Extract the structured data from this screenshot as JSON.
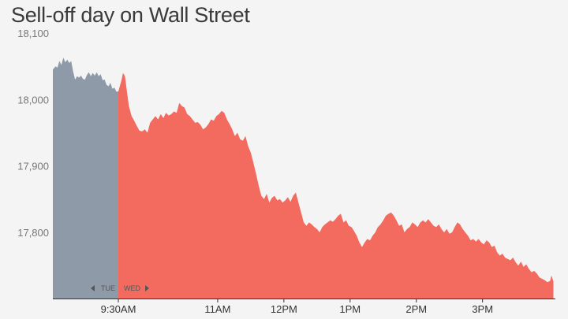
{
  "title": "Sell-off day on Wall Street",
  "colors": {
    "background": "#f4f4f4",
    "prior_day": "#8f9aa8",
    "current_day": "#f36b5f",
    "gridline": "#dcdcdc",
    "axis": "#333333"
  },
  "chart_data": {
    "type": "area",
    "title": "Sell-off day on Wall Street",
    "xlabel": "",
    "ylabel": "",
    "ylim": [
      17700,
      18100
    ],
    "yticks": [
      {
        "value": 18100,
        "label": "18,100"
      },
      {
        "value": 18000,
        "label": "18,000"
      },
      {
        "value": 17900,
        "label": "17,900"
      },
      {
        "value": 17800,
        "label": "17,800"
      }
    ],
    "xticks": [
      "9:30AM",
      "11AM",
      "12PM",
      "1PM",
      "2PM",
      "3PM"
    ],
    "xtick_hours": [
      9.5,
      11,
      12,
      13,
      14,
      15
    ],
    "xlim_hours": [
      9.5,
      16.1
    ],
    "grid": false,
    "day_markers": {
      "previous": "TUE",
      "current": "WED"
    },
    "series": [
      {
        "key": "tue",
        "points": [
          [
            0.0,
            18045
          ],
          [
            0.04,
            18050
          ],
          [
            0.07,
            18048
          ],
          [
            0.1,
            18058
          ],
          [
            0.13,
            18052
          ],
          [
            0.16,
            18063
          ],
          [
            0.19,
            18056
          ],
          [
            0.22,
            18060
          ],
          [
            0.25,
            18055
          ],
          [
            0.28,
            18058
          ],
          [
            0.31,
            18042
          ],
          [
            0.34,
            18030
          ],
          [
            0.37,
            18035
          ],
          [
            0.4,
            18033
          ],
          [
            0.43,
            18036
          ],
          [
            0.46,
            18031
          ],
          [
            0.49,
            18030
          ],
          [
            0.52,
            18037
          ],
          [
            0.55,
            18041
          ],
          [
            0.58,
            18035
          ],
          [
            0.61,
            18040
          ],
          [
            0.64,
            18036
          ],
          [
            0.67,
            18041
          ],
          [
            0.7,
            18035
          ],
          [
            0.73,
            18038
          ],
          [
            0.76,
            18029
          ],
          [
            0.79,
            18030
          ],
          [
            0.82,
            18022
          ],
          [
            0.85,
            18020
          ],
          [
            0.88,
            18025
          ],
          [
            0.91,
            18016
          ],
          [
            0.94,
            18018
          ],
          [
            0.97,
            18012
          ],
          [
            1.0,
            18012
          ]
        ]
      },
      {
        "key": "wed",
        "points": [
          [
            9.5,
            18012
          ],
          [
            9.55,
            18030
          ],
          [
            9.57,
            18040
          ],
          [
            9.6,
            18035
          ],
          [
            9.63,
            18012
          ],
          [
            9.66,
            17990
          ],
          [
            9.7,
            17975
          ],
          [
            9.74,
            17968
          ],
          [
            9.78,
            17960
          ],
          [
            9.82,
            17953
          ],
          [
            9.86,
            17952
          ],
          [
            9.9,
            17955
          ],
          [
            9.94,
            17950
          ],
          [
            9.98,
            17965
          ],
          [
            10.02,
            17970
          ],
          [
            10.06,
            17975
          ],
          [
            10.1,
            17970
          ],
          [
            10.14,
            17978
          ],
          [
            10.18,
            17972
          ],
          [
            10.22,
            17980
          ],
          [
            10.26,
            17976
          ],
          [
            10.3,
            17978
          ],
          [
            10.34,
            17982
          ],
          [
            10.38,
            17980
          ],
          [
            10.42,
            17995
          ],
          [
            10.46,
            17990
          ],
          [
            10.5,
            17988
          ],
          [
            10.54,
            17978
          ],
          [
            10.58,
            17975
          ],
          [
            10.62,
            17970
          ],
          [
            10.66,
            17965
          ],
          [
            10.7,
            17966
          ],
          [
            10.74,
            17962
          ],
          [
            10.78,
            17955
          ],
          [
            10.82,
            17958
          ],
          [
            10.86,
            17963
          ],
          [
            10.9,
            17970
          ],
          [
            10.94,
            17968
          ],
          [
            10.98,
            17975
          ],
          [
            11.02,
            17978
          ],
          [
            11.06,
            17983
          ],
          [
            11.1,
            17980
          ],
          [
            11.14,
            17970
          ],
          [
            11.18,
            17963
          ],
          [
            11.22,
            17955
          ],
          [
            11.26,
            17945
          ],
          [
            11.3,
            17950
          ],
          [
            11.34,
            17940
          ],
          [
            11.38,
            17938
          ],
          [
            11.42,
            17945
          ],
          [
            11.46,
            17930
          ],
          [
            11.5,
            17920
          ],
          [
            11.54,
            17905
          ],
          [
            11.58,
            17888
          ],
          [
            11.62,
            17870
          ],
          [
            11.66,
            17855
          ],
          [
            11.7,
            17850
          ],
          [
            11.74,
            17858
          ],
          [
            11.78,
            17845
          ],
          [
            11.82,
            17852
          ],
          [
            11.86,
            17855
          ],
          [
            11.9,
            17848
          ],
          [
            11.94,
            17850
          ],
          [
            11.98,
            17845
          ],
          [
            12.02,
            17848
          ],
          [
            12.06,
            17853
          ],
          [
            12.1,
            17846
          ],
          [
            12.14,
            17855
          ],
          [
            12.18,
            17860
          ],
          [
            12.22,
            17845
          ],
          [
            12.26,
            17830
          ],
          [
            12.3,
            17815
          ],
          [
            12.34,
            17810
          ],
          [
            12.38,
            17815
          ],
          [
            12.42,
            17812
          ],
          [
            12.46,
            17808
          ],
          [
            12.5,
            17805
          ],
          [
            12.54,
            17800
          ],
          [
            12.58,
            17808
          ],
          [
            12.62,
            17812
          ],
          [
            12.66,
            17815
          ],
          [
            12.7,
            17818
          ],
          [
            12.74,
            17816
          ],
          [
            12.78,
            17820
          ],
          [
            12.82,
            17825
          ],
          [
            12.86,
            17828
          ],
          [
            12.9,
            17815
          ],
          [
            12.94,
            17818
          ],
          [
            12.98,
            17810
          ],
          [
            13.02,
            17808
          ],
          [
            13.06,
            17802
          ],
          [
            13.1,
            17795
          ],
          [
            13.14,
            17785
          ],
          [
            13.18,
            17778
          ],
          [
            13.22,
            17785
          ],
          [
            13.26,
            17790
          ],
          [
            13.3,
            17788
          ],
          [
            13.34,
            17795
          ],
          [
            13.38,
            17800
          ],
          [
            13.42,
            17808
          ],
          [
            13.46,
            17812
          ],
          [
            13.5,
            17818
          ],
          [
            13.54,
            17825
          ],
          [
            13.58,
            17828
          ],
          [
            13.62,
            17830
          ],
          [
            13.66,
            17825
          ],
          [
            13.7,
            17818
          ],
          [
            13.74,
            17810
          ],
          [
            13.78,
            17812
          ],
          [
            13.82,
            17800
          ],
          [
            13.86,
            17805
          ],
          [
            13.9,
            17808
          ],
          [
            13.94,
            17815
          ],
          [
            13.98,
            17812
          ],
          [
            14.02,
            17808
          ],
          [
            14.06,
            17815
          ],
          [
            14.1,
            17818
          ],
          [
            14.14,
            17815
          ],
          [
            14.18,
            17820
          ],
          [
            14.22,
            17815
          ],
          [
            14.26,
            17810
          ],
          [
            14.3,
            17808
          ],
          [
            14.34,
            17812
          ],
          [
            14.38,
            17805
          ],
          [
            14.42,
            17800
          ],
          [
            14.46,
            17805
          ],
          [
            14.5,
            17798
          ],
          [
            14.54,
            17800
          ],
          [
            14.58,
            17808
          ],
          [
            14.62,
            17815
          ],
          [
            14.66,
            17812
          ],
          [
            14.7,
            17805
          ],
          [
            14.74,
            17800
          ],
          [
            14.78,
            17795
          ],
          [
            14.82,
            17788
          ],
          [
            14.86,
            17790
          ],
          [
            14.9,
            17786
          ],
          [
            14.94,
            17790
          ],
          [
            14.98,
            17785
          ],
          [
            15.02,
            17782
          ],
          [
            15.06,
            17788
          ],
          [
            15.1,
            17785
          ],
          [
            15.14,
            17778
          ],
          [
            15.18,
            17780
          ],
          [
            15.22,
            17770
          ],
          [
            15.26,
            17765
          ],
          [
            15.3,
            17768
          ],
          [
            15.34,
            17762
          ],
          [
            15.38,
            17760
          ],
          [
            15.42,
            17758
          ],
          [
            15.46,
            17762
          ],
          [
            15.5,
            17755
          ],
          [
            15.54,
            17750
          ],
          [
            15.58,
            17756
          ],
          [
            15.62,
            17748
          ],
          [
            15.66,
            17752
          ],
          [
            15.7,
            17745
          ],
          [
            15.74,
            17740
          ],
          [
            15.78,
            17742
          ],
          [
            15.82,
            17738
          ],
          [
            15.86,
            17732
          ],
          [
            15.9,
            17730
          ],
          [
            15.94,
            17728
          ],
          [
            15.98,
            17725
          ],
          [
            16.02,
            17727
          ],
          [
            16.04,
            17735
          ],
          [
            16.07,
            17726
          ]
        ]
      }
    ]
  }
}
